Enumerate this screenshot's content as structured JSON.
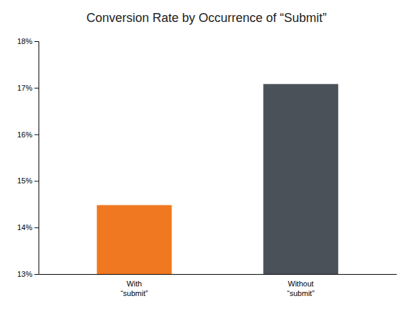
{
  "chart_data": {
    "type": "bar",
    "title": "Conversion Rate by Occurrence of “Submit”",
    "categories": [
      "With\n“submit”",
      "Without\n“submit”"
    ],
    "values": [
      0.1448,
      0.1708
    ],
    "colors": [
      "#F07820",
      "#4B5158"
    ],
    "ylim": [
      0.13,
      0.18
    ],
    "yticks": [
      {
        "value": 0.13,
        "label": "13%"
      },
      {
        "value": 0.14,
        "label": "14%"
      },
      {
        "value": 0.15,
        "label": "15%"
      },
      {
        "value": 0.16,
        "label": "16%"
      },
      {
        "value": 0.17,
        "label": "17%"
      },
      {
        "value": 0.18,
        "label": "18%"
      }
    ],
    "grid": false
  }
}
